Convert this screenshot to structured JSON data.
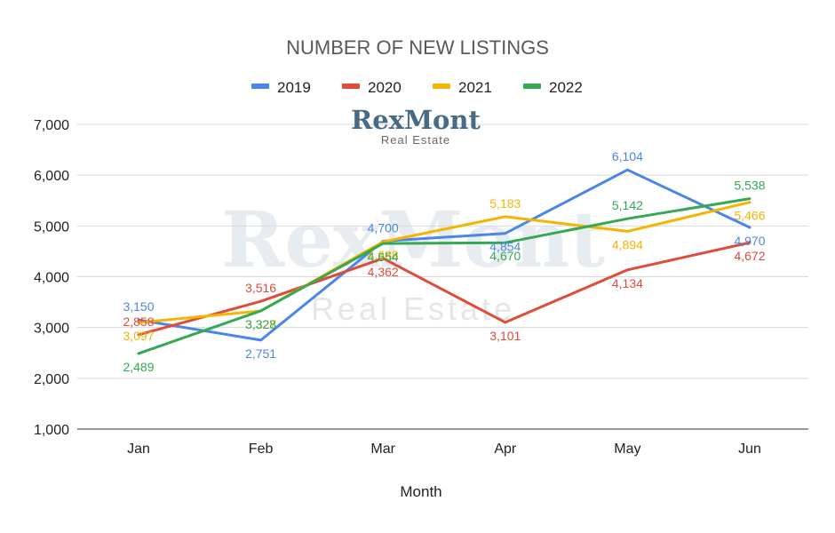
{
  "chart_data": {
    "type": "line",
    "title": "NUMBER OF NEW LISTINGS",
    "xlabel": "Month",
    "ylabel": "",
    "categories": [
      "Jan",
      "Feb",
      "Mar",
      "Apr",
      "May",
      "Jun"
    ],
    "ylim": [
      1000,
      7000
    ],
    "yticks": [
      1000,
      2000,
      3000,
      4000,
      5000,
      6000,
      7000
    ],
    "ytick_labels": [
      "1,000",
      "2,000",
      "3,000",
      "4,000",
      "5,000",
      "6,000",
      "7,000"
    ],
    "grid": true,
    "legend_position": "top-center",
    "series": [
      {
        "name": "2019",
        "color": "#4a86e8",
        "values": [
          3150,
          2751,
          4700,
          4854,
          6104,
          4970
        ],
        "labels": [
          "3,150",
          "2,751",
          "4,700",
          "4,854",
          "6,104",
          "4,970"
        ]
      },
      {
        "name": "2020",
        "color": "#e04b3a",
        "values": [
          2858,
          3516,
          4362,
          3101,
          4134,
          4672
        ],
        "labels": [
          "2,858",
          "3,516",
          "4,362",
          "3,101",
          "4,134",
          "4,672"
        ]
      },
      {
        "name": "2021",
        "color": "#f4b400",
        "values": [
          3097,
          3327,
          4688,
          5183,
          4894,
          5466
        ],
        "labels": [
          "3,097",
          "3,327",
          "4,688",
          "5,183",
          "4,894",
          "5,466"
        ]
      },
      {
        "name": "2022",
        "color": "#34a853",
        "values": [
          2489,
          3328,
          4654,
          4670,
          5142,
          5538
        ],
        "labels": [
          "2,489",
          "3,328",
          "4,654",
          "4,670",
          "5,142",
          "5,538"
        ]
      }
    ]
  },
  "branding": {
    "logo_main": "RexMont",
    "logo_sub": "Real Estate",
    "watermark_main": "RexMont",
    "watermark_sub": "Real Estate"
  }
}
